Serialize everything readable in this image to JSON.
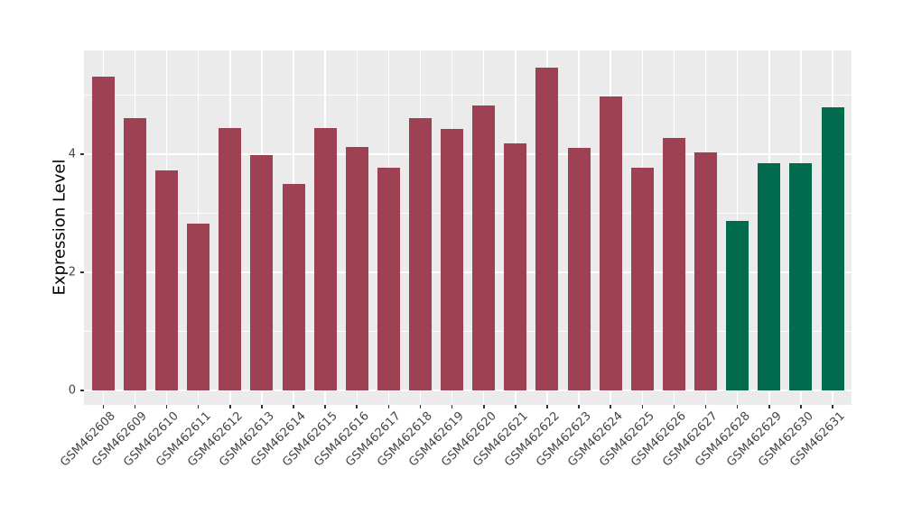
{
  "chart_data": {
    "type": "bar",
    "title": "",
    "xlabel": "",
    "ylabel": "Expression Level",
    "categories": [
      "GSM462608",
      "GSM462609",
      "GSM462610",
      "GSM462611",
      "GSM462612",
      "GSM462613",
      "GSM462614",
      "GSM462615",
      "GSM462616",
      "GSM462617",
      "GSM462618",
      "GSM462619",
      "GSM462620",
      "GSM462621",
      "GSM462622",
      "GSM462623",
      "GSM462624",
      "GSM462625",
      "GSM462626",
      "GSM462627",
      "GSM462628",
      "GSM462629",
      "GSM462630",
      "GSM462631"
    ],
    "values": [
      5.31,
      4.61,
      3.73,
      2.83,
      4.45,
      3.98,
      3.49,
      4.45,
      4.12,
      3.77,
      4.61,
      4.42,
      4.83,
      4.19,
      5.47,
      4.11,
      4.97,
      3.77,
      4.27,
      4.03,
      2.87,
      3.85,
      3.84,
      4.8
    ],
    "bar_colors": [
      "#9E4152",
      "#9E4152",
      "#9E4152",
      "#9E4152",
      "#9E4152",
      "#9E4152",
      "#9E4152",
      "#9E4152",
      "#9E4152",
      "#9E4152",
      "#9E4152",
      "#9E4152",
      "#9E4152",
      "#9E4152",
      "#9E4152",
      "#9E4152",
      "#9E4152",
      "#9E4152",
      "#9E4152",
      "#9E4152",
      "#036B4D",
      "#036B4D",
      "#036B4D",
      "#036B4D"
    ],
    "colors": {
      "bar_maroon": "#9E4152",
      "bar_green": "#036B4D",
      "panel_background": "#EBEBEB",
      "gridline": "#FFFFFF",
      "axis_text": "#444444",
      "axis_title": "#000000"
    },
    "yticks": [
      0,
      2,
      4
    ],
    "yticks_minor": [
      1,
      3,
      5
    ],
    "ylim": [
      0,
      5.75
    ],
    "grid": true,
    "legend_position": "none"
  }
}
